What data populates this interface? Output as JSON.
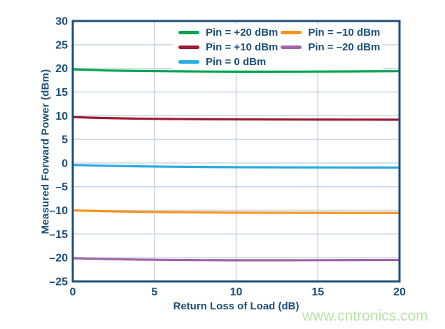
{
  "chart_data": {
    "type": "line",
    "title": "",
    "xlabel": "Return Loss of Load (dB)",
    "ylabel": "Measured Forward Power (dBm)",
    "xlim": [
      0,
      20
    ],
    "ylim": [
      -25,
      30
    ],
    "xtick_values": [
      0,
      5,
      10,
      15,
      20
    ],
    "xtick_labels": [
      "0",
      "5",
      "10",
      "15",
      "20"
    ],
    "ytick_values": [
      30,
      25,
      20,
      15,
      10,
      5,
      0,
      -5,
      -10,
      -15,
      -20,
      -25
    ],
    "ytick_labels": [
      "30",
      "25",
      "20",
      "15",
      "10",
      "5",
      "0",
      "–5",
      "–10",
      "–15",
      "–20",
      "–25"
    ],
    "grid": true,
    "legend_position": "inside-top-center",
    "x": [
      0,
      2,
      4,
      6,
      8,
      10,
      12,
      14,
      16,
      18,
      20
    ],
    "series": [
      {
        "name": "Pin = +20 dBm",
        "color": "#00a551",
        "values": [
          19.8,
          19.55,
          19.45,
          19.38,
          19.33,
          19.3,
          19.3,
          19.31,
          19.34,
          19.37,
          19.4
        ]
      },
      {
        "name": "Pin = +10 dBm",
        "color": "#9e1b32",
        "values": [
          9.7,
          9.5,
          9.38,
          9.3,
          9.25,
          9.22,
          9.2,
          9.18,
          9.17,
          9.16,
          9.15
        ]
      },
      {
        "name": "Pin = 0 dBm",
        "color": "#29abe2",
        "values": [
          -0.4,
          -0.58,
          -0.7,
          -0.78,
          -0.84,
          -0.88,
          -0.9,
          -0.92,
          -0.93,
          -0.94,
          -0.95
        ]
      },
      {
        "name": "Pin = –10 dBm",
        "color": "#f7941e",
        "values": [
          -10.0,
          -10.18,
          -10.3,
          -10.38,
          -10.44,
          -10.48,
          -10.5,
          -10.52,
          -10.53,
          -10.54,
          -10.55
        ]
      },
      {
        "name": "Pin = –20 dBm",
        "color": "#a164a8",
        "values": [
          -20.1,
          -20.28,
          -20.4,
          -20.48,
          -20.52,
          -20.55,
          -20.55,
          -20.54,
          -20.52,
          -20.5,
          -20.48
        ]
      }
    ]
  },
  "watermark": "www.cntronics.com",
  "colors": {
    "axis": "#1d4e79",
    "grid": "#c9d5e2",
    "tick_text": "#1d4e79",
    "watermark": "#b7e3a8",
    "background": "#ffffff"
  }
}
